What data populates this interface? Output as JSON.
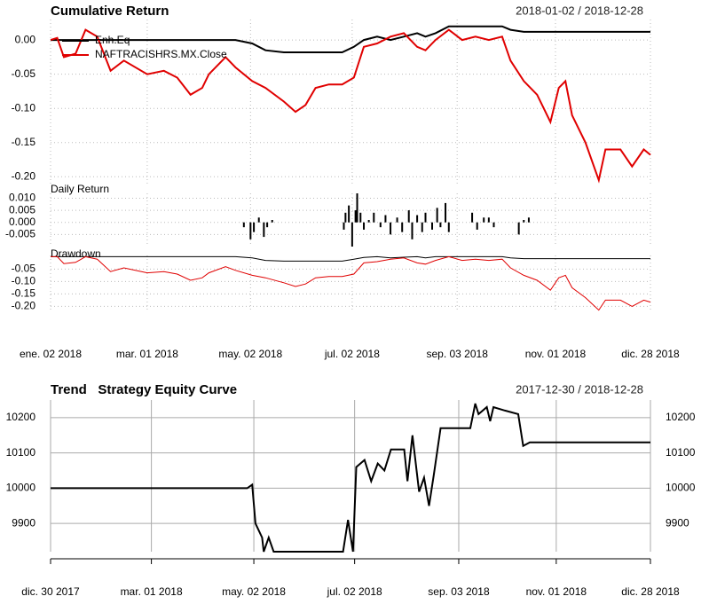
{
  "chart_data": [
    {
      "type": "line",
      "title": "Cumulative Return",
      "date_range": "2018-01-02 / 2018-12-28",
      "xlim": [
        "2018-01-02",
        "2018-12-28"
      ],
      "ylim": [
        -0.21,
        0.03
      ],
      "yticks": [
        {
          "value": 0,
          "label": "0.00"
        },
        -0.05,
        {
          "value": -0.1,
          "label": "-0.10"
        },
        -0.15,
        {
          "value": -0.2,
          "label": "-0.20"
        }
      ],
      "grid": true,
      "grid_style": "dotted",
      "legend": "top-left",
      "x": [
        "2018-01-02",
        "2018-01-06",
        "2018-01-10",
        "2018-01-17",
        "2018-01-23",
        "2018-01-30",
        "2018-02-07",
        "2018-02-15",
        "2018-03-01",
        "2018-03-11",
        "2018-03-19",
        "2018-03-27",
        "2018-04-03",
        "2018-04-07",
        "2018-04-17",
        "2018-04-23",
        "2018-05-03",
        "2018-05-11",
        "2018-05-22",
        "2018-05-29",
        "2018-06-04",
        "2018-06-10",
        "2018-06-18",
        "2018-06-26",
        "2018-07-03",
        "2018-07-09",
        "2018-07-17",
        "2018-07-25",
        "2018-08-02",
        "2018-08-10",
        "2018-08-15",
        "2018-08-21",
        "2018-08-29",
        "2018-09-06",
        "2018-09-14",
        "2018-09-22",
        "2018-09-30",
        "2018-10-05",
        "2018-10-13",
        "2018-10-21",
        "2018-10-29",
        "2018-11-03",
        "2018-11-07",
        "2018-11-11",
        "2018-11-19",
        "2018-11-27",
        "2018-12-01",
        "2018-12-10",
        "2018-12-17",
        "2018-12-24",
        "2018-12-28"
      ],
      "series": [
        {
          "name": "Enh.Eq",
          "color": "#000000",
          "values": [
            0,
            0,
            0,
            0,
            0,
            0,
            0,
            0,
            0,
            0,
            0,
            0,
            0,
            0,
            0,
            0,
            -0.005,
            -0.015,
            -0.018,
            -0.018,
            -0.018,
            -0.018,
            -0.018,
            -0.018,
            -0.01,
            0,
            0.005,
            0,
            0.005,
            0.01,
            0.005,
            0.01,
            0.02,
            0.02,
            0.02,
            0.02,
            0.02,
            0.015,
            0.012,
            0.012,
            0.012,
            0.012,
            0.012,
            0.012,
            0.012,
            0.012,
            0.012,
            0.012,
            0.012,
            0.012,
            0.012
          ]
        },
        {
          "name": "NAFTRACISHRS.MX.Close",
          "color": "#e00000",
          "values": [
            0,
            0.003,
            -0.025,
            -0.02,
            0.015,
            0.005,
            -0.045,
            -0.03,
            -0.05,
            -0.045,
            -0.055,
            -0.08,
            -0.07,
            -0.05,
            -0.025,
            -0.04,
            -0.06,
            -0.07,
            -0.09,
            -0.105,
            -0.095,
            -0.07,
            -0.065,
            -0.065,
            -0.055,
            -0.01,
            -0.005,
            0.005,
            0.01,
            -0.01,
            -0.015,
            0,
            0.015,
            0,
            0.005,
            0,
            0.005,
            -0.03,
            -0.06,
            -0.08,
            -0.12,
            -0.07,
            -0.06,
            -0.11,
            -0.15,
            -0.205,
            -0.16,
            -0.16,
            -0.185,
            -0.16,
            -0.168
          ]
        }
      ]
    },
    {
      "type": "bar",
      "title": "Daily Return",
      "color": "#000000",
      "xlim": [
        "2018-01-02",
        "2018-12-28"
      ],
      "ylim": [
        -0.01,
        0.012
      ],
      "yticks": [
        {
          "value": 0.01,
          "label": "0.010"
        },
        0.005,
        {
          "value": 0,
          "label": "0.000"
        },
        -0.005
      ],
      "grid": true,
      "grid_style": "dotted",
      "x": [
        "2018-04-28",
        "2018-05-02",
        "2018-05-04",
        "2018-05-07",
        "2018-05-10",
        "2018-05-12",
        "2018-05-15",
        "2018-06-27",
        "2018-06-28",
        "2018-06-30",
        "2018-07-02",
        "2018-07-04",
        "2018-07-05",
        "2018-07-07",
        "2018-07-09",
        "2018-07-12",
        "2018-07-15",
        "2018-07-19",
        "2018-07-22",
        "2018-07-25",
        "2018-07-29",
        "2018-08-01",
        "2018-08-05",
        "2018-08-07",
        "2018-08-10",
        "2018-08-13",
        "2018-08-15",
        "2018-08-19",
        "2018-08-22",
        "2018-08-24",
        "2018-08-27",
        "2018-08-29",
        "2018-09-12",
        "2018-09-15",
        "2018-09-19",
        "2018-09-22",
        "2018-09-25",
        "2018-10-10",
        "2018-10-13",
        "2018-10-16"
      ],
      "values": [
        -0.002,
        -0.007,
        -0.004,
        0.002,
        -0.006,
        -0.002,
        0.001,
        -0.003,
        0.004,
        0.007,
        -0.01,
        0.005,
        0.012,
        0.004,
        -0.003,
        0.001,
        0.004,
        -0.002,
        0.003,
        -0.005,
        0.002,
        -0.004,
        0.005,
        -0.007,
        0.003,
        -0.004,
        0.004,
        -0.003,
        0.006,
        -0.002,
        0.008,
        -0.004,
        0.004,
        -0.003,
        0.002,
        0.002,
        -0.002,
        -0.005,
        0.001,
        0.002
      ]
    },
    {
      "type": "line",
      "title": "Drawdown",
      "xlim": [
        "2018-01-02",
        "2018-12-28"
      ],
      "ylim": [
        -0.22,
        0.005
      ],
      "yticks": [
        -0.05,
        {
          "value": -0.1,
          "label": "-0.10"
        },
        -0.15,
        {
          "value": -0.2,
          "label": "-0.20"
        }
      ],
      "xticks": [
        {
          "value": "2018-01-02",
          "label": "ene. 02 2018"
        },
        {
          "value": "2018-03-01",
          "label": "mar. 01 2018"
        },
        {
          "value": "2018-05-02",
          "label": "may. 02 2018"
        },
        {
          "value": "2018-07-02",
          "label": "jul. 02 2018"
        },
        {
          "value": "2018-09-03",
          "label": "sep. 03 2018"
        },
        {
          "value": "2018-11-01",
          "label": "nov. 01 2018"
        },
        {
          "value": "2018-12-28",
          "label": "dic. 28 2018"
        }
      ],
      "grid": true,
      "grid_style": "dotted",
      "x": [
        "2018-01-02",
        "2018-01-06",
        "2018-01-10",
        "2018-01-17",
        "2018-01-23",
        "2018-01-30",
        "2018-02-07",
        "2018-02-15",
        "2018-03-01",
        "2018-03-11",
        "2018-03-19",
        "2018-03-27",
        "2018-04-03",
        "2018-04-07",
        "2018-04-17",
        "2018-04-23",
        "2018-05-03",
        "2018-05-11",
        "2018-05-22",
        "2018-05-29",
        "2018-06-04",
        "2018-06-10",
        "2018-06-18",
        "2018-06-26",
        "2018-07-03",
        "2018-07-09",
        "2018-07-17",
        "2018-07-25",
        "2018-08-02",
        "2018-08-10",
        "2018-08-15",
        "2018-08-21",
        "2018-08-29",
        "2018-09-06",
        "2018-09-14",
        "2018-09-22",
        "2018-09-30",
        "2018-10-05",
        "2018-10-13",
        "2018-10-21",
        "2018-10-29",
        "2018-11-03",
        "2018-11-07",
        "2018-11-11",
        "2018-11-19",
        "2018-11-27",
        "2018-12-01",
        "2018-12-10",
        "2018-12-17",
        "2018-12-24",
        "2018-12-28"
      ],
      "series": [
        {
          "color": "#000000",
          "values": [
            0,
            0,
            0,
            0,
            0,
            0,
            0,
            0,
            0,
            0,
            0,
            0,
            0,
            0,
            0,
            0,
            -0.005,
            -0.015,
            -0.018,
            -0.018,
            -0.018,
            -0.018,
            -0.018,
            -0.018,
            -0.01,
            -0.003,
            0,
            -0.005,
            -0.002,
            0,
            -0.005,
            0,
            0,
            0,
            0,
            0,
            0,
            -0.005,
            -0.008,
            -0.008,
            -0.008,
            -0.008,
            -0.008,
            -0.008,
            -0.008,
            -0.008,
            -0.008,
            -0.008,
            -0.008,
            -0.008,
            -0.008
          ]
        },
        {
          "color": "#e00000",
          "values": [
            0,
            0,
            -0.028,
            -0.023,
            0,
            -0.01,
            -0.06,
            -0.045,
            -0.065,
            -0.06,
            -0.07,
            -0.095,
            -0.085,
            -0.065,
            -0.04,
            -0.055,
            -0.075,
            -0.085,
            -0.105,
            -0.12,
            -0.11,
            -0.085,
            -0.08,
            -0.08,
            -0.07,
            -0.025,
            -0.02,
            -0.01,
            -0.005,
            -0.025,
            -0.03,
            -0.015,
            0,
            -0.015,
            -0.01,
            -0.015,
            -0.01,
            -0.045,
            -0.075,
            -0.095,
            -0.135,
            -0.085,
            -0.075,
            -0.125,
            -0.165,
            -0.215,
            -0.175,
            -0.175,
            -0.2,
            -0.175,
            -0.183
          ]
        }
      ]
    },
    {
      "type": "line",
      "title": "Trend   Strategy Equity Curve",
      "date_range": "2017-12-30 / 2018-12-28",
      "xlim": [
        "2017-12-30",
        "2018-12-28"
      ],
      "ylim": [
        9820,
        10250
      ],
      "yticks": [
        9900,
        10000,
        10100,
        10200
      ],
      "right_axis": true,
      "xticks": [
        {
          "value": "2017-12-30",
          "label": "dic. 30 2017"
        },
        {
          "value": "2018-03-01",
          "label": "mar. 01 2018"
        },
        {
          "value": "2018-05-02",
          "label": "may. 02 2018"
        },
        {
          "value": "2018-07-02",
          "label": "jul. 02 2018"
        },
        {
          "value": "2018-09-03",
          "label": "sep. 03 2018"
        },
        {
          "value": "2018-11-01",
          "label": "nov. 01 2018"
        },
        {
          "value": "2018-12-28",
          "label": "dic. 28 2018"
        }
      ],
      "grid": true,
      "grid_style": "solid",
      "x": [
        "2017-12-30",
        "2018-04-28",
        "2018-05-01",
        "2018-05-03",
        "2018-05-07",
        "2018-05-08",
        "2018-05-11",
        "2018-05-14",
        "2018-06-25",
        "2018-06-28",
        "2018-07-01",
        "2018-07-03",
        "2018-07-08",
        "2018-07-12",
        "2018-07-16",
        "2018-07-20",
        "2018-07-24",
        "2018-08-01",
        "2018-08-03",
        "2018-08-06",
        "2018-08-10",
        "2018-08-13",
        "2018-08-16",
        "2018-08-19",
        "2018-08-23",
        "2018-08-26",
        "2018-09-10",
        "2018-09-13",
        "2018-09-15",
        "2018-09-20",
        "2018-09-22",
        "2018-09-24",
        "2018-10-01",
        "2018-10-09",
        "2018-10-12",
        "2018-10-16",
        "2018-12-28"
      ],
      "series": [
        {
          "color": "#000000",
          "values": [
            10000,
            10000,
            10010,
            9900,
            9860,
            9820,
            9860,
            9820,
            9820,
            9910,
            9820,
            10060,
            10080,
            10020,
            10070,
            10050,
            10110,
            10110,
            10020,
            10150,
            9990,
            10030,
            9950,
            10040,
            10170,
            10170,
            10170,
            10240,
            10210,
            10230,
            10190,
            10230,
            10220,
            10210,
            10120,
            10130,
            10130
          ]
        }
      ]
    }
  ]
}
